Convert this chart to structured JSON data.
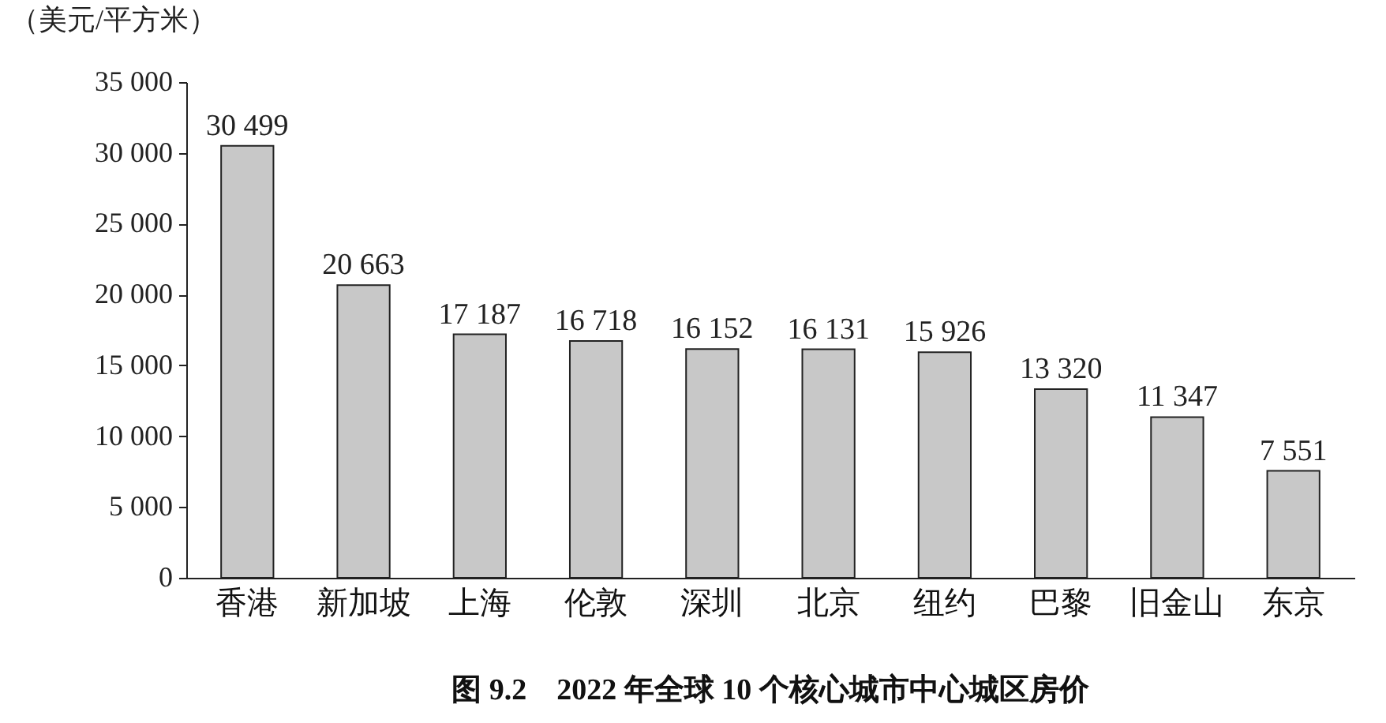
{
  "chart_data": {
    "type": "bar",
    "title": "图 9.2　2022 年全球 10 个核心城市中心城区房价",
    "ylabel": "（美元/平方米）",
    "categories": [
      "香港",
      "新加坡",
      "上海",
      "伦敦",
      "深圳",
      "北京",
      "纽约",
      "巴黎",
      "旧金山",
      "东京"
    ],
    "values": [
      30499,
      20663,
      17187,
      16718,
      16152,
      16131,
      15926,
      13320,
      11347,
      7551
    ],
    "value_labels": [
      "30 499",
      "20 663",
      "17 187",
      "16 718",
      "16 152",
      "16 131",
      "15 926",
      "13 320",
      "11 347",
      "7 551"
    ],
    "color": "#c8c8c8",
    "ylim": [
      0,
      35000
    ],
    "yticks": [
      0,
      {
        "value": 5000,
        "label": "5 000"
      },
      {
        "value": 10000,
        "label": "10 000"
      },
      {
        "value": 15000,
        "label": "15 000"
      },
      {
        "value": 20000,
        "label": "20 000"
      },
      {
        "value": 25000,
        "label": "25 000"
      },
      {
        "value": 30000,
        "label": "30 000"
      },
      {
        "value": 35000,
        "label": "35 000"
      }
    ],
    "grid": false
  }
}
